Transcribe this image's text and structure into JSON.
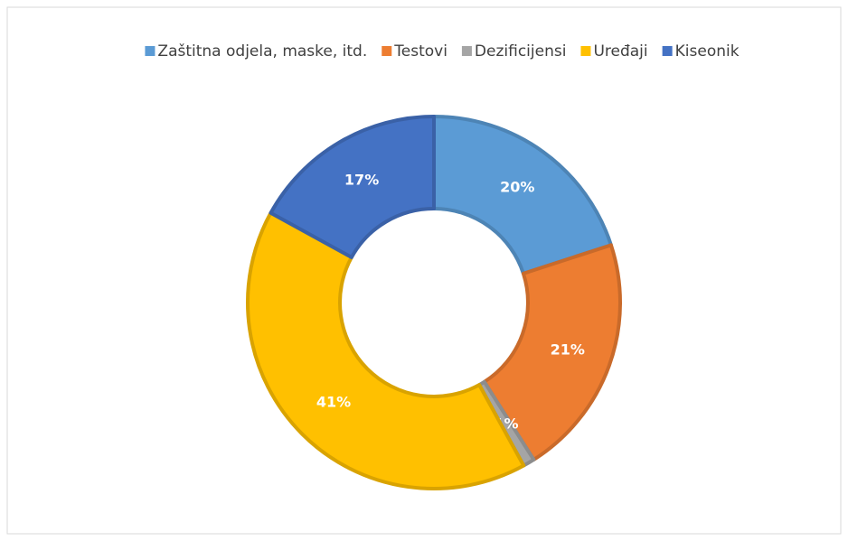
{
  "chart_data": {
    "type": "donut",
    "categories": [
      "Zaštitna odjela, maske, itd.",
      "Testovi",
      "Dezificijensi",
      "Uređaji",
      "Kiseonik"
    ],
    "values": [
      20,
      21,
      1,
      41,
      17
    ],
    "value_labels": [
      "20%",
      "21%",
      "1%",
      "41%",
      "17%"
    ],
    "colors": [
      "#5b9bd5",
      "#ed7d31",
      "#a5a5a5",
      "#ffc000",
      "#4472c4"
    ],
    "legend": "top"
  }
}
